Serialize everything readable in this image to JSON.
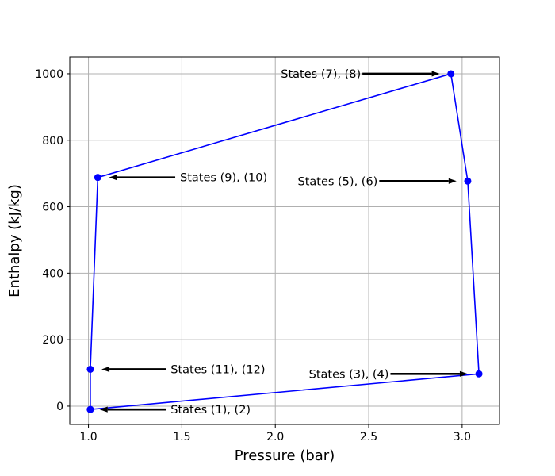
{
  "chart_data": {
    "type": "line",
    "title": "",
    "xlabel": "Pressure (bar)",
    "ylabel": "Enthalpy (kJ/kg)",
    "xlim": [
      0.9,
      3.2
    ],
    "ylim": [
      -55,
      1050
    ],
    "xticks": [
      1.0,
      1.5,
      2.0,
      2.5,
      3.0
    ],
    "xtick_labels": [
      "1.0",
      "1.5",
      "2.0",
      "2.5",
      "3.0"
    ],
    "yticks": [
      0,
      200,
      400,
      600,
      800,
      1000
    ],
    "ytick_labels": [
      "0",
      "200",
      "400",
      "600",
      "800",
      "1000"
    ],
    "grid": true,
    "color": "#0000ff",
    "series": [
      {
        "x": [
          1.01,
          3.09,
          3.03,
          2.94,
          1.05,
          1.01,
          1.01
        ],
        "y": [
          -10,
          97,
          677,
          1000,
          688,
          111,
          -10
        ]
      }
    ],
    "annotations": [
      {
        "text": "States (1), (2)",
        "text_xy": [
          1.44,
          -10
        ],
        "arrow_to": [
          1.06,
          -10
        ]
      },
      {
        "text": "States (3), (4)",
        "text_xy": [
          2.18,
          97
        ],
        "arrow_to": [
          3.03,
          97
        ]
      },
      {
        "text": "States (5), (6)",
        "text_xy": [
          2.12,
          677
        ],
        "arrow_to": [
          2.97,
          677
        ]
      },
      {
        "text": "States (7), (8)",
        "text_xy": [
          2.03,
          1000
        ],
        "arrow_to": [
          2.88,
          1000
        ]
      },
      {
        "text": "States (9), (10)",
        "text_xy": [
          1.49,
          688
        ],
        "arrow_to": [
          1.11,
          688
        ]
      },
      {
        "text": "States (11), (12)",
        "text_xy": [
          1.44,
          111
        ],
        "arrow_to": [
          1.07,
          111
        ]
      }
    ]
  }
}
